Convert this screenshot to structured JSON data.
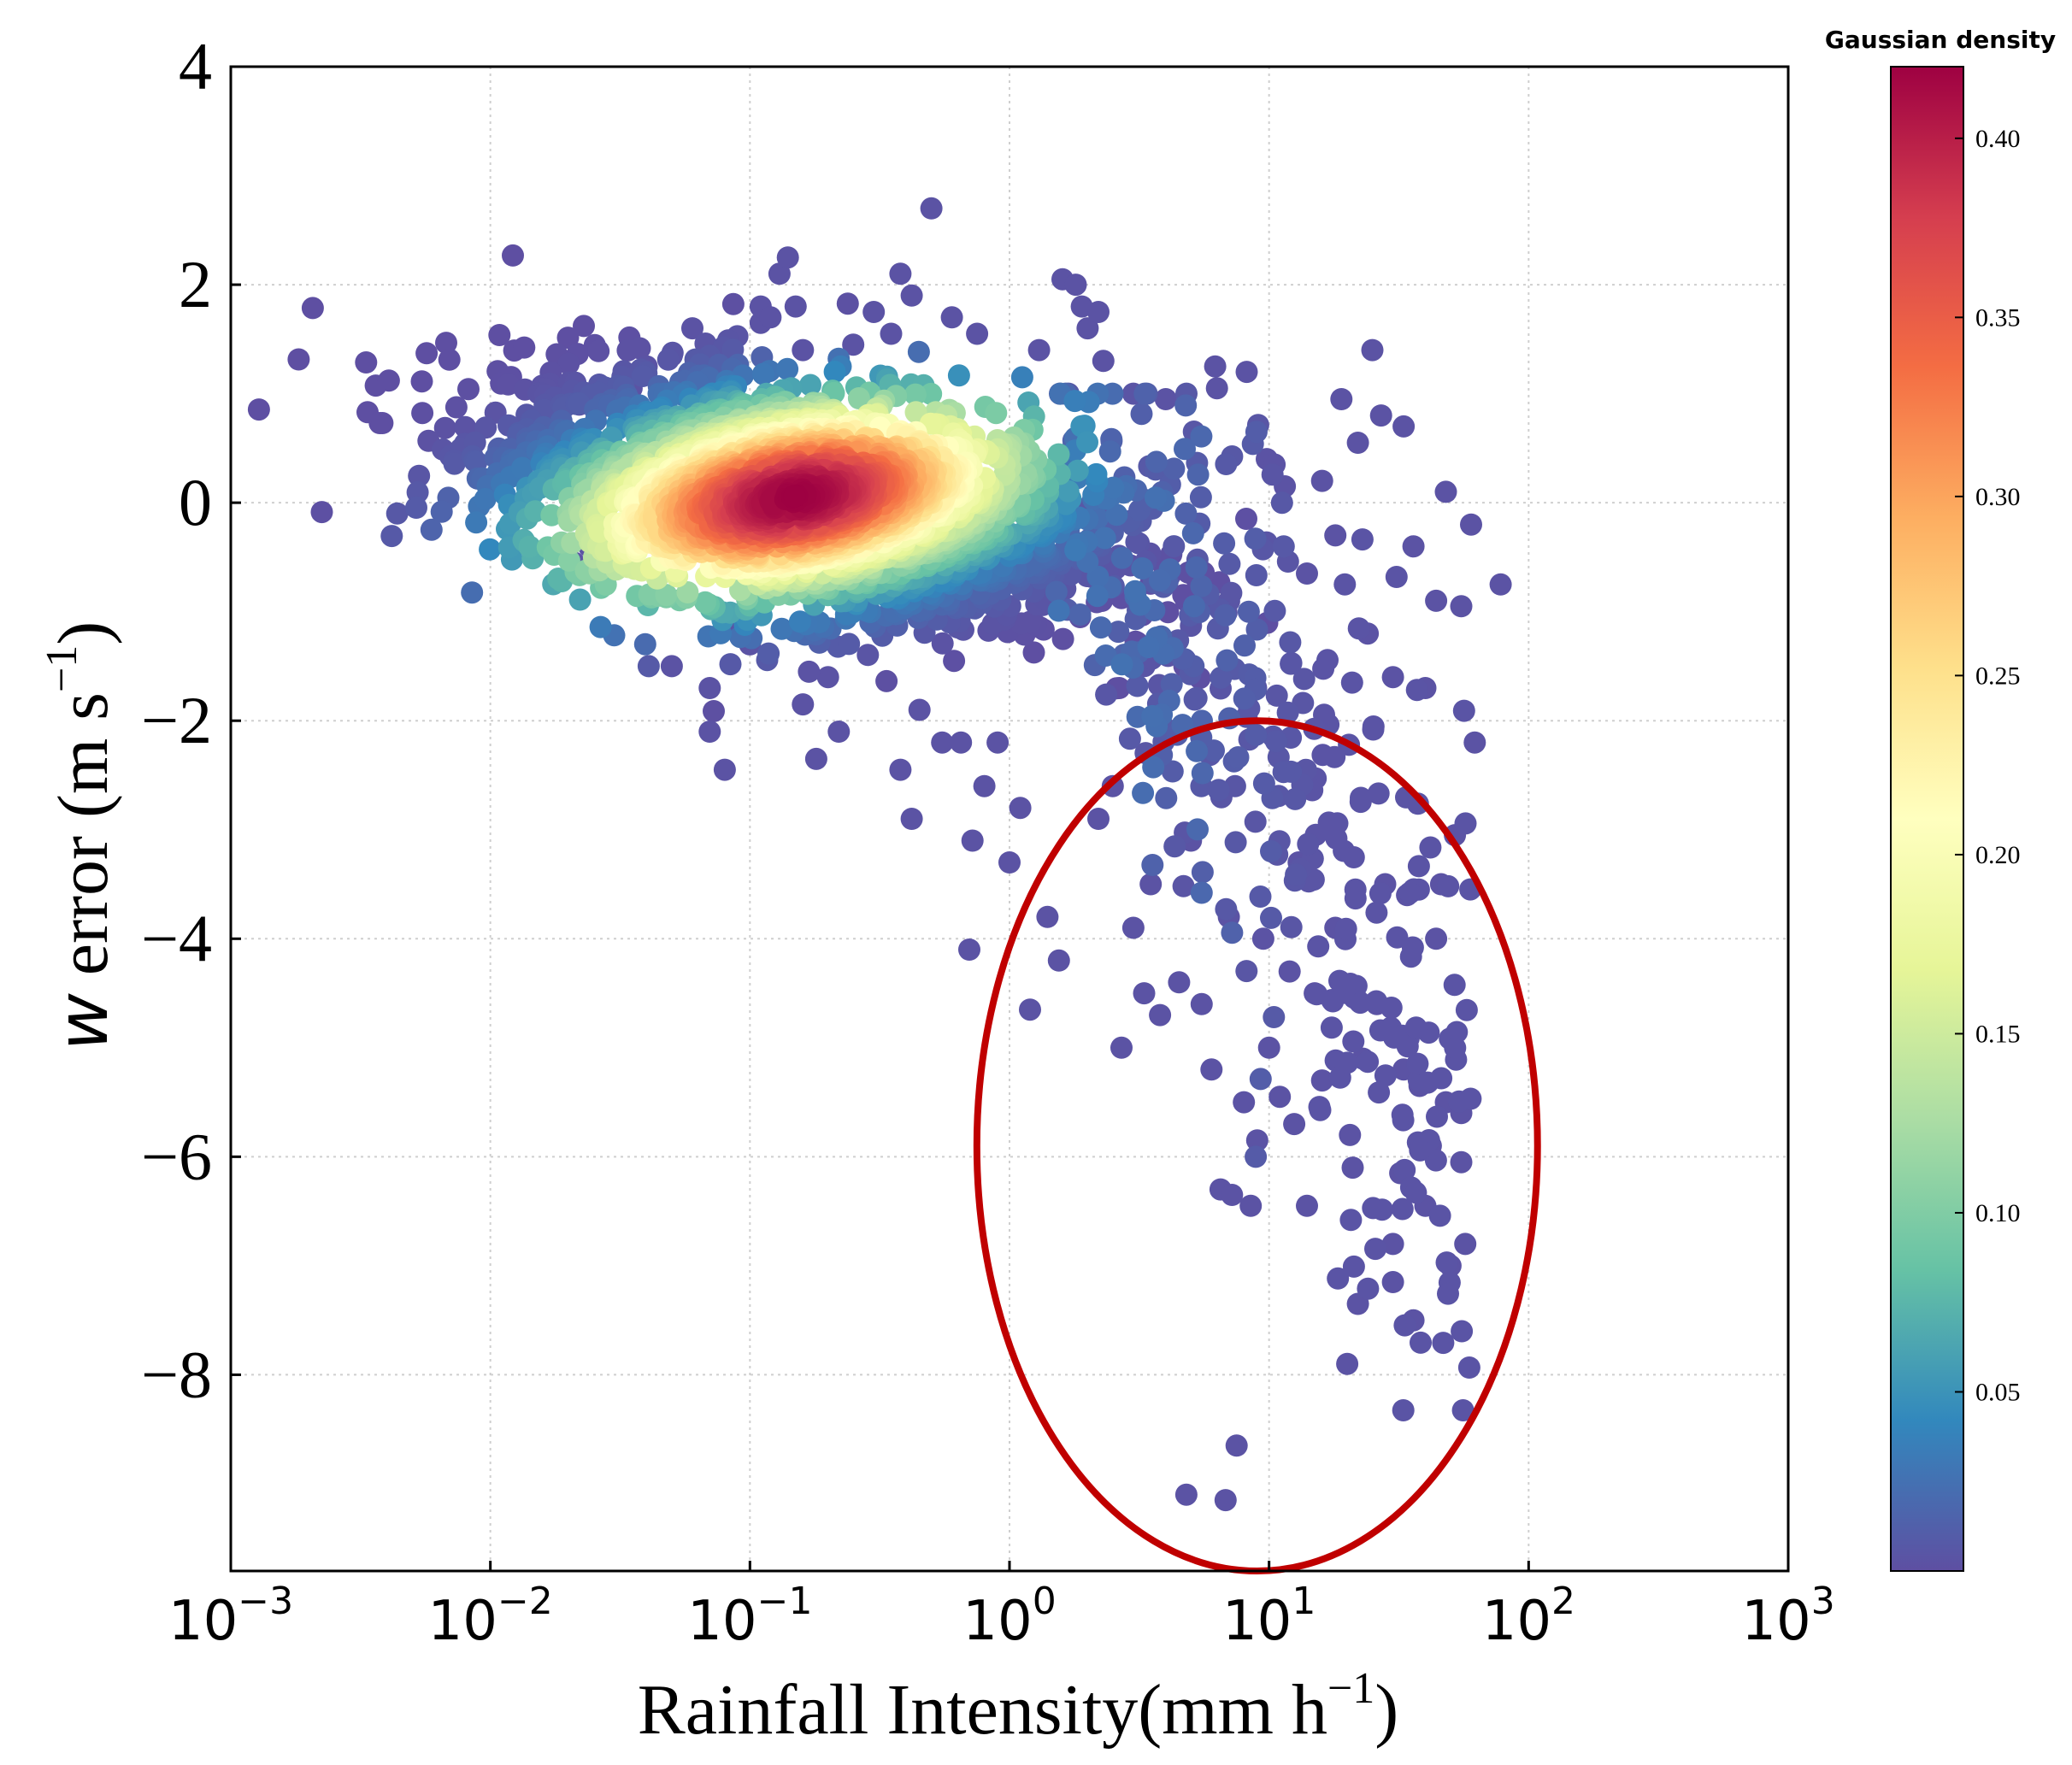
{
  "chart_data": {
    "type": "scatter",
    "title": "",
    "xlabel_main": "Rainfall Intensity(mm h",
    "xlabel_exp": "−1",
    "xlabel_close": ")",
    "ylabel_var": "w",
    "ylabel_main": " error (m s",
    "ylabel_exp": "−1",
    "ylabel_close": ")",
    "xscale": "log",
    "xlim": [
      0.001,
      1000
    ],
    "ylim": [
      -9.8,
      4
    ],
    "x_ticks": [
      {
        "value": 0.001,
        "base": "10",
        "exp": "−3"
      },
      {
        "value": 0.01,
        "base": "10",
        "exp": "−2"
      },
      {
        "value": 0.1,
        "base": "10",
        "exp": "−1"
      },
      {
        "value": 1,
        "base": "10",
        "exp": "0"
      },
      {
        "value": 10,
        "base": "10",
        "exp": "1"
      },
      {
        "value": 100,
        "base": "10",
        "exp": "2"
      },
      {
        "value": 1000,
        "base": "10",
        "exp": "3"
      }
    ],
    "y_ticks": [
      {
        "value": 4,
        "label": "4"
      },
      {
        "value": 2,
        "label": "2"
      },
      {
        "value": 0,
        "label": "0"
      },
      {
        "value": -2,
        "label": "−2"
      },
      {
        "value": -4,
        "label": "−4"
      },
      {
        "value": -6,
        "label": "−6"
      },
      {
        "value": -8,
        "label": "−8"
      }
    ],
    "grid": true,
    "colorbar": {
      "title": "Gaussian density",
      "range": [
        0.0,
        0.42
      ],
      "ticks": [
        {
          "value": 0.05,
          "label": "0.05"
        },
        {
          "value": 0.1,
          "label": "0.10"
        },
        {
          "value": 0.15,
          "label": "0.15"
        },
        {
          "value": 0.2,
          "label": "0.20"
        },
        {
          "value": 0.25,
          "label": "0.25"
        },
        {
          "value": 0.3,
          "label": "0.30"
        },
        {
          "value": 0.35,
          "label": "0.35"
        },
        {
          "value": 0.4,
          "label": "0.40"
        }
      ],
      "colormap": [
        "#5e4fa2",
        "#3288bd",
        "#66c2a5",
        "#abdda4",
        "#e6f598",
        "#ffffbf",
        "#fee08b",
        "#fdae61",
        "#f46d43",
        "#d53e4f",
        "#9e0142"
      ]
    },
    "core_cluster": {
      "description": "dense Gaussian cloud of points",
      "center": [
        0.15,
        0.05
      ],
      "log10x_spread": 0.55,
      "y_spread": 0.55,
      "peak_density": 0.42
    },
    "outlier_points": [
      [
        0.018,
        0.85
      ],
      [
        0.022,
        0.9
      ],
      [
        0.021,
        -0.55
      ],
      [
        0.024,
        -0.4
      ],
      [
        0.035,
        1.05
      ],
      [
        0.04,
        1.25
      ],
      [
        0.05,
        1.35
      ],
      [
        0.06,
        1.6
      ],
      [
        0.065,
        1.25
      ],
      [
        0.07,
        -1.7
      ],
      [
        0.07,
        -2.1
      ],
      [
        0.08,
        -2.45
      ],
      [
        0.05,
        -1.5
      ],
      [
        0.09,
        -1.1
      ],
      [
        0.1,
        -1.3
      ],
      [
        0.11,
        1.65
      ],
      [
        0.11,
        1.8
      ],
      [
        0.12,
        1.7
      ],
      [
        0.13,
        2.1
      ],
      [
        0.14,
        2.25
      ],
      [
        0.15,
        1.8
      ],
      [
        0.16,
        1.4
      ],
      [
        0.16,
        -1.85
      ],
      [
        0.18,
        -2.35
      ],
      [
        0.2,
        -1.6
      ],
      [
        0.22,
        -2.1
      ],
      [
        0.25,
        1.45
      ],
      [
        0.3,
        1.75
      ],
      [
        0.35,
        1.55
      ],
      [
        0.38,
        2.1
      ],
      [
        0.38,
        -2.45
      ],
      [
        0.42,
        1.9
      ],
      [
        0.42,
        -2.9
      ],
      [
        0.45,
        -1.9
      ],
      [
        0.5,
        2.7
      ],
      [
        0.55,
        -2.2
      ],
      [
        0.6,
        1.7
      ],
      [
        0.65,
        -2.2
      ],
      [
        0.7,
        -4.1
      ],
      [
        0.72,
        -3.1
      ],
      [
        0.75,
        1.55
      ],
      [
        0.8,
        -2.6
      ],
      [
        0.9,
        -2.2
      ],
      [
        1.0,
        -3.3
      ],
      [
        1.1,
        -2.8
      ],
      [
        1.2,
        -4.65
      ],
      [
        1.3,
        1.4
      ],
      [
        1.4,
        -3.8
      ],
      [
        1.55,
        -4.2
      ],
      [
        1.6,
        2.05
      ],
      [
        1.8,
        2.0
      ],
      [
        1.9,
        1.8
      ],
      [
        2.0,
        1.6
      ],
      [
        2.2,
        1.75
      ],
      [
        2.3,
        1.3
      ],
      [
        2.2,
        -2.9
      ],
      [
        2.5,
        -2.6
      ],
      [
        2.7,
        -5.0
      ],
      [
        3.0,
        -3.9
      ],
      [
        3.3,
        -4.5
      ],
      [
        3.5,
        -3.5
      ],
      [
        3.8,
        -4.7
      ],
      [
        4.0,
        0.95
      ],
      [
        4.5,
        -4.4
      ],
      [
        5.0,
        -3.1
      ],
      [
        5.5,
        -4.6
      ],
      [
        6.0,
        -5.2
      ],
      [
        6.2,
        1.25
      ],
      [
        6.3,
        1.05
      ],
      [
        6.5,
        -6.3
      ],
      [
        7.0,
        -3.8
      ],
      [
        7.2,
        -6.35
      ],
      [
        7.5,
        -8.65
      ],
      [
        8.0,
        -5.5
      ],
      [
        8.2,
        1.2
      ],
      [
        8.5,
        -6.45
      ],
      [
        9.0,
        -5.85
      ],
      [
        9.5,
        -4.0
      ],
      [
        10.0,
        -5.0
      ],
      [
        11.0,
        -5.45
      ],
      [
        12.0,
        -4.3
      ],
      [
        12.5,
        -5.7
      ],
      [
        13.0,
        -3.3
      ],
      [
        14.0,
        -6.45
      ],
      [
        15.0,
        -4.5
      ],
      [
        16.0,
        -5.3
      ],
      [
        18.0,
        -3.9
      ],
      [
        19.0,
        0.95
      ],
      [
        20.0,
        -7.9
      ],
      [
        20.5,
        -5.8
      ],
      [
        21.0,
        -6.1
      ],
      [
        22.0,
        -7.35
      ],
      [
        23.0,
        -5.1
      ],
      [
        25.0,
        1.4
      ],
      [
        26.0,
        -4.6
      ],
      [
        28.0,
        -3.5
      ],
      [
        30.0,
        -6.8
      ],
      [
        30.0,
        -7.15
      ],
      [
        32.0,
        -6.15
      ],
      [
        33.0,
        -5.2
      ],
      [
        34.0,
        -3.6
      ],
      [
        36.0,
        -7.5
      ],
      [
        38.0,
        -5.35
      ],
      [
        40.0,
        -6.45
      ],
      [
        42.0,
        -5.9
      ],
      [
        44.0,
        -4.0
      ],
      [
        46.0,
        -3.5
      ],
      [
        48.0,
        -5.5
      ],
      [
        50.0,
        -7.0
      ],
      [
        52.0,
        -3.05
      ],
      [
        55.0,
        -5.6
      ],
      [
        55.0,
        -6.05
      ],
      [
        57.0,
        -6.8
      ],
      [
        60.0,
        -0.2
      ],
      [
        62.0,
        -2.2
      ],
      [
        78.0,
        -0.75
      ],
      [
        4.8,
        -9.1
      ],
      [
        6.8,
        -9.15
      ],
      [
        9.8,
        0.4
      ],
      [
        10.5,
        0.35
      ],
      [
        11.5,
        0.15
      ],
      [
        14.0,
        -0.65
      ],
      [
        16.0,
        0.2
      ],
      [
        18.0,
        -0.3
      ],
      [
        22.0,
        0.55
      ],
      [
        24.0,
        -1.2
      ],
      [
        27.0,
        0.8
      ],
      [
        30.0,
        -1.6
      ],
      [
        33.0,
        0.7
      ],
      [
        36.0,
        -0.4
      ],
      [
        40.0,
        -1.7
      ],
      [
        44.0,
        -0.9
      ],
      [
        48.0,
        0.1
      ],
      [
        55.0,
        -0.95
      ]
    ],
    "tail_cloud": {
      "description": "sparse band of points trailing from the core toward heavy rain and negative error",
      "x_range": [
        1.5,
        60
      ],
      "y_range": [
        -9.0,
        1.0
      ]
    },
    "annotations": [
      {
        "type": "ellipse",
        "center": [
          9.0,
          -5.9
        ],
        "log10x_halfwidth": 1.08,
        "y_halfheight": 3.9,
        "color": "#c00000"
      }
    ]
  }
}
